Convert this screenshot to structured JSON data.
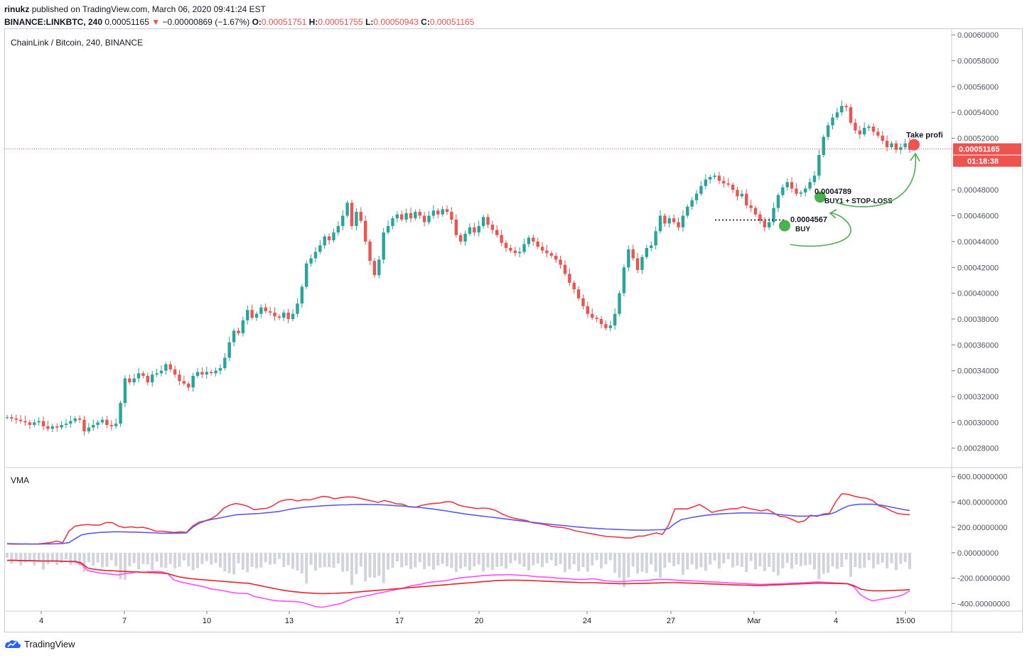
{
  "header": {
    "author": "rinukz",
    "published": "published on TradingView.com, March 06, 2020 09:41:24 EST",
    "symbol": "BINANCE:LINKBTC, 240",
    "last": "0.00051165",
    "change_arrow": "▼",
    "change": "−0.00000869 (−1.67%)",
    "o_label": "O:",
    "o_value": "0.00051751",
    "h_label": "H:",
    "h_value": "0.00051755",
    "l_label": "L:",
    "l_value": "0.00050943",
    "c_label": "C:",
    "c_value": "0.00051165"
  },
  "pane_title": "ChainLink / Bitcoin, 240, BINANCE",
  "indicator_title": "VMA",
  "footer": {
    "brand": "TradingView",
    "icon": "tradingview-cloud-icon"
  },
  "colors": {
    "up": "#26a69a",
    "down": "#ef5350",
    "vma_fast": "#f23645",
    "vma_slow": "#5b5bf0",
    "osc_fast": "#ff4dff",
    "osc_slow": "#e5252a",
    "volume": "#d1d4dc",
    "annotation": "#4caf50",
    "price_line": "#ef5350"
  },
  "chart_data": [
    {
      "type": "candlestick",
      "title": "ChainLink / Bitcoin, 240, BINANCE",
      "x_ticks": [
        "4",
        "7",
        "10",
        "13",
        "17",
        "20",
        "24",
        "27",
        "Mar",
        "4",
        "15:00"
      ],
      "y_ticks": [
        "0.00060000",
        "0.00058000",
        "0.00056000",
        "0.00054000",
        "0.00052000",
        "0.00048000",
        "0.00046000",
        "0.00044000",
        "0.00042000",
        "0.00040000",
        "0.00038000",
        "0.00036000",
        "0.00034000",
        "0.00032000",
        "0.00030000",
        "0.00028000"
      ],
      "y_partial_label": "0.",
      "ylim": [
        0.000265,
        0.000605
      ],
      "last_price": {
        "value": 0.00051165,
        "label": "0.00051165",
        "countdown": "01:18:38"
      },
      "closes": [
        0.000304,
        0.000303,
        0.000302,
        0.000301,
        0.0003,
        0.000298,
        0.0003,
        0.000301,
        0.000297,
        0.000295,
        0.000297,
        0.000296,
        0.000298,
        0.000299,
        0.000301,
        0.000303,
        0.000302,
        0.000293,
        0.000296,
        0.000298,
        0.0003,
        0.000302,
        0.000298,
        0.000297,
        0.000299,
        0.000315,
        0.000334,
        0.000331,
        0.000334,
        0.000338,
        0.000336,
        0.000331,
        0.000337,
        0.000338,
        0.00034,
        0.000345,
        0.000341,
        0.000337,
        0.000332,
        0.00033,
        0.000327,
        0.000336,
        0.000339,
        0.000337,
        0.000339,
        0.000338,
        0.00034,
        0.000342,
        0.00035,
        0.000362,
        0.000371,
        0.000369,
        0.000379,
        0.000387,
        0.000381,
        0.000384,
        0.000389,
        0.000386,
        0.000385,
        0.000382,
        0.000381,
        0.000385,
        0.00038,
        0.000384,
        0.000392,
        0.000405,
        0.000423,
        0.000427,
        0.000432,
        0.000437,
        0.000444,
        0.000441,
        0.000447,
        0.000452,
        0.00046,
        0.00047,
        0.000452,
        0.000463,
        0.000456,
        0.00044,
        0.000425,
        0.000414,
        0.000426,
        0.000447,
        0.000452,
        0.000458,
        0.000461,
        0.000457,
        0.000462,
        0.000458,
        0.000463,
        0.00046,
        0.000455,
        0.00046,
        0.000464,
        0.000461,
        0.000465,
        0.000463,
        0.000457,
        0.000445,
        0.00044,
        0.000446,
        0.000451,
        0.000447,
        0.000452,
        0.000459,
        0.000453,
        0.000449,
        0.000445,
        0.000439,
        0.000435,
        0.000433,
        0.000431,
        0.000432,
        0.000438,
        0.000443,
        0.00044,
        0.000436,
        0.000433,
        0.000431,
        0.000429,
        0.000426,
        0.000422,
        0.000415,
        0.000408,
        0.000403,
        0.000396,
        0.00039,
        0.000384,
        0.000381,
        0.00038,
        0.000376,
        0.000373,
        0.000375,
        0.000384,
        0.0004,
        0.00042,
        0.000434,
        0.000427,
        0.000418,
        0.000428,
        0.000435,
        0.000437,
        0.000448,
        0.00046,
        0.000454,
        0.000458,
        0.000455,
        0.000451,
        0.00046,
        0.000467,
        0.000472,
        0.000477,
        0.000483,
        0.000488,
        0.00049,
        0.000491,
        0.000487,
        0.000485,
        0.000484,
        0.00048,
        0.000475,
        0.000477,
        0.000468,
        0.000466,
        0.000461,
        0.000456,
        0.000451,
        0.000455,
        0.000466,
        0.000476,
        0.000482,
        0.000486,
        0.000481,
        0.000477,
        0.000478,
        0.000481,
        0.000486,
        0.000491,
        0.000507,
        0.000521,
        0.00053,
        0.000536,
        0.00054,
        0.000545,
        0.000544,
        0.000532,
        0.000526,
        0.000523,
        0.000528,
        0.000529,
        0.000525,
        0.000522,
        0.000518,
        0.000513,
        0.000516,
        0.000511,
        0.000513,
        0.000516,
        0.000511
      ],
      "annotations": [
        {
          "label": "0.0004567",
          "note": "BUY",
          "value": 0.0004567
        },
        {
          "label": "0.0004789",
          "note": "BUY1 + STOP-LOSS",
          "value": 0.0004789
        },
        {
          "label": "Take profi",
          "value": 0.00051165
        }
      ]
    },
    {
      "type": "line",
      "title": "VMA",
      "y_ticks": [
        "600.00000000",
        "400.00000000",
        "200.00000000",
        "0.00000000",
        "-200.00000000",
        "-400.00000000"
      ],
      "ylim": [
        -460,
        660
      ],
      "series": [
        {
          "values": [
            70,
            68,
            68,
            70,
            68,
            70,
            74,
            80,
            92,
            80,
            170,
            210,
            218,
            222,
            218,
            218,
            238,
            238,
            210,
            198,
            205,
            198,
            200,
            188,
            170,
            170,
            165,
            160,
            165,
            160,
            210,
            240,
            252,
            268,
            298,
            350,
            375,
            388,
            380,
            365,
            338,
            346,
            350,
            370,
            403,
            416,
            420,
            408,
            418,
            416,
            430,
            444,
            440,
            425,
            435,
            440,
            438,
            430,
            418,
            408,
            396,
            412,
            400,
            385,
            382,
            362,
            358,
            372,
            382,
            388,
            392,
            402,
            400,
            376,
            364,
            356,
            348,
            352,
            348,
            333,
            308,
            286,
            272,
            262,
            254,
            236,
            230,
            222,
            208,
            202,
            198,
            186,
            172,
            162,
            154,
            146,
            136,
            128,
            126,
            122,
            116,
            116,
            130,
            132,
            144,
            156,
            144,
            218,
            345,
            346,
            345,
            362,
            380,
            352,
            318,
            330,
            338,
            346,
            346,
            362,
            349,
            340,
            330,
            340,
            314,
            286,
            282,
            262,
            240,
            252,
            296,
            286,
            305,
            310,
            398,
            465,
            460,
            446,
            435,
            430,
            411,
            371,
            356,
            330,
            310,
            303,
            300
          ]
        },
        {
          "values": [
            72,
            71,
            70,
            69,
            68,
            68,
            69,
            70,
            71,
            73,
            80,
            110,
            140,
            150,
            155,
            160,
            162,
            165,
            165,
            164,
            163,
            162,
            160,
            158,
            156,
            154,
            154,
            154,
            155,
            156,
            200,
            230,
            250,
            262,
            270,
            280,
            290,
            298,
            302,
            305,
            308,
            310,
            315,
            320,
            325,
            335,
            345,
            352,
            358,
            362,
            366,
            370,
            372,
            375,
            377,
            378,
            380,
            381,
            381,
            380,
            379,
            377,
            374,
            370,
            368,
            364,
            360,
            356,
            350,
            344,
            337,
            330,
            322,
            314,
            306,
            300,
            294,
            288,
            282,
            276,
            270,
            264,
            258,
            252,
            246,
            240,
            234,
            229,
            224,
            219,
            214,
            209,
            204,
            200,
            196,
            193,
            190,
            187,
            185,
            183,
            181,
            179,
            178,
            178,
            179,
            181,
            182,
            190,
            230,
            260,
            270,
            280,
            288,
            295,
            300,
            305,
            308,
            310,
            312,
            314,
            314,
            313,
            312,
            310,
            306,
            300,
            296,
            292,
            288,
            288,
            290,
            292,
            298,
            304,
            320,
            346,
            368,
            378,
            382,
            383,
            382,
            378,
            370,
            360,
            350,
            340,
            333
          ]
        },
        {
          "values": [
            -60,
            -60,
            -62,
            -62,
            -64,
            -66,
            -66,
            -64,
            -66,
            -68,
            -70,
            -72,
            -90,
            -140,
            -150,
            -160,
            -165,
            -170,
            -175,
            -165,
            -160,
            -150,
            -155,
            -150,
            -148,
            -150,
            -165,
            -215,
            -230,
            -240,
            -250,
            -260,
            -270,
            -285,
            -292,
            -300,
            -310,
            -318,
            -320,
            -322,
            -345,
            -355,
            -365,
            -375,
            -380,
            -382,
            -384,
            -386,
            -395,
            -410,
            -425,
            -430,
            -420,
            -410,
            -400,
            -380,
            -360,
            -350,
            -340,
            -330,
            -320,
            -310,
            -300,
            -290,
            -280,
            -265,
            -255,
            -248,
            -235,
            -230,
            -225,
            -220,
            -210,
            -200,
            -195,
            -190,
            -185,
            -180,
            -178,
            -175,
            -175,
            -172,
            -175,
            -178,
            -180,
            -185,
            -190,
            -192,
            -195,
            -200,
            -202,
            -205,
            -210,
            -210,
            -208,
            -206,
            -215,
            -222,
            -225,
            -228,
            -225,
            -222,
            -220,
            -218,
            -215,
            -210,
            -210,
            -212,
            -215,
            -218,
            -220,
            -222,
            -225,
            -228,
            -230,
            -232,
            -235,
            -238,
            -240,
            -242,
            -245,
            -248,
            -250,
            -248,
            -246,
            -245,
            -243,
            -240,
            -238,
            -236,
            -232,
            -230,
            -232,
            -235,
            -238,
            -240,
            -245,
            -270,
            -330,
            -360,
            -380,
            -370,
            -362,
            -355,
            -345,
            -330,
            -300
          ]
        },
        {
          "values": [
            -60,
            -60,
            -61,
            -62,
            -63,
            -64,
            -65,
            -66,
            -66,
            -67,
            -68,
            -68,
            -80,
            -120,
            -130,
            -136,
            -140,
            -142,
            -145,
            -147,
            -150,
            -152,
            -154,
            -156,
            -158,
            -160,
            -165,
            -180,
            -192,
            -200,
            -205,
            -210,
            -214,
            -218,
            -222,
            -226,
            -230,
            -234,
            -238,
            -240,
            -250,
            -260,
            -270,
            -280,
            -290,
            -298,
            -305,
            -310,
            -315,
            -318,
            -320,
            -322,
            -321,
            -320,
            -318,
            -316,
            -312,
            -308,
            -304,
            -300,
            -296,
            -292,
            -288,
            -284,
            -280,
            -276,
            -272,
            -268,
            -264,
            -260,
            -256,
            -252,
            -248,
            -244,
            -240,
            -236,
            -232,
            -228,
            -224,
            -220,
            -218,
            -216,
            -216,
            -217,
            -218,
            -220,
            -222,
            -224,
            -226,
            -228,
            -230,
            -232,
            -234,
            -236,
            -236,
            -236,
            -238,
            -240,
            -242,
            -244,
            -244,
            -243,
            -242,
            -241,
            -240,
            -238,
            -237,
            -236,
            -236,
            -237,
            -238,
            -240,
            -242,
            -244,
            -246,
            -248,
            -250,
            -252,
            -254,
            -255,
            -256,
            -258,
            -258,
            -256,
            -254,
            -252,
            -250,
            -248,
            -246,
            -244,
            -242,
            -240,
            -240,
            -241,
            -242,
            -243,
            -245,
            -260,
            -285,
            -295,
            -300,
            -300,
            -300,
            -298,
            -296,
            -294,
            -290
          ]
        }
      ]
    }
  ]
}
